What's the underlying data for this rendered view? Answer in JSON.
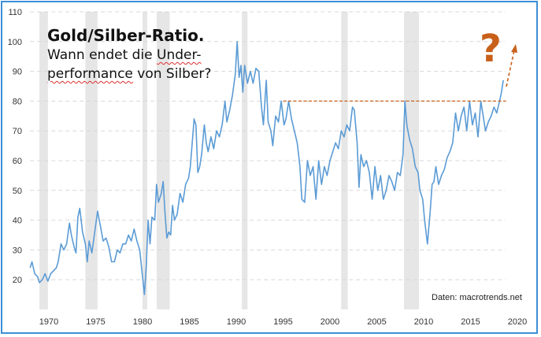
{
  "title": "Gold/Silber-Ratio.",
  "subtitle_line1_a": "Wann endet die ",
  "subtitle_line1_b": "Under-",
  "subtitle_line2_a": "performance",
  "subtitle_line2_b": " von Silber?",
  "source": "Daten: macrotrends.net",
  "question_mark": "?",
  "colors": {
    "line": "#5b9bd5",
    "annotation": "#c8601a",
    "recession": "#e6e6e6",
    "frame": "#3d8fd6"
  },
  "chart_data": {
    "type": "line",
    "title": "Gold/Silber-Ratio.",
    "xlabel": "",
    "ylabel": "",
    "xlim": [
      1968,
      2020.5
    ],
    "ylim": [
      10,
      110
    ],
    "x_ticks": [
      1970,
      1975,
      1980,
      1985,
      1990,
      1995,
      2000,
      2005,
      2010,
      2015,
      2020
    ],
    "y_ticks": [
      20,
      30,
      40,
      50,
      60,
      70,
      80,
      90,
      100,
      110
    ],
    "grid": true,
    "recessions": [
      [
        1969.0,
        1969.9
      ],
      [
        1973.9,
        1975.2
      ],
      [
        1980.0,
        1980.5
      ],
      [
        1981.5,
        1982.9
      ],
      [
        1990.6,
        1991.2
      ],
      [
        2001.2,
        2001.9
      ],
      [
        2007.9,
        2009.5
      ]
    ],
    "reference_line": {
      "value": 80,
      "from": 1995,
      "to": 2018.8
    },
    "series": [
      {
        "name": "Gold/Silber-Ratio",
        "x": [
          1968.0,
          1968.2,
          1968.5,
          1968.8,
          1969.0,
          1969.3,
          1969.6,
          1969.9,
          1970.2,
          1970.5,
          1970.8,
          1971.0,
          1971.3,
          1971.6,
          1971.9,
          1972.2,
          1972.4,
          1972.7,
          1972.9,
          1973.1,
          1973.3,
          1973.6,
          1973.9,
          1974.1,
          1974.3,
          1974.6,
          1974.9,
          1975.2,
          1975.5,
          1975.8,
          1976.1,
          1976.4,
          1976.7,
          1977.0,
          1977.3,
          1977.6,
          1977.9,
          1978.2,
          1978.5,
          1978.8,
          1979.1,
          1979.4,
          1979.7,
          1980.0,
          1980.2,
          1980.4,
          1980.6,
          1980.8,
          1981.0,
          1981.3,
          1981.5,
          1981.7,
          1982.0,
          1982.2,
          1982.4,
          1982.6,
          1982.8,
          1983.0,
          1983.2,
          1983.4,
          1983.7,
          1984.0,
          1984.3,
          1984.6,
          1984.9,
          1985.1,
          1985.3,
          1985.5,
          1985.7,
          1985.9,
          1986.1,
          1986.3,
          1986.6,
          1986.8,
          1987.0,
          1987.3,
          1987.6,
          1987.9,
          1988.2,
          1988.5,
          1988.8,
          1989.0,
          1989.3,
          1989.6,
          1989.9,
          1990.1,
          1990.3,
          1990.5,
          1990.7,
          1990.9,
          1991.2,
          1991.5,
          1991.8,
          1992.1,
          1992.4,
          1992.7,
          1992.9,
          1993.2,
          1993.4,
          1993.7,
          1993.9,
          1994.2,
          1994.5,
          1994.8,
          1995.1,
          1995.3,
          1995.6,
          1995.9,
          1996.2,
          1996.5,
          1996.8,
          1997.0,
          1997.3,
          1997.6,
          1997.9,
          1998.2,
          1998.5,
          1998.8,
          1999.1,
          1999.4,
          1999.7,
          2000.0,
          2000.3,
          2000.6,
          2000.9,
          2001.2,
          2001.5,
          2001.8,
          2002.1,
          2002.4,
          2002.6,
          2002.9,
          2003.1,
          2003.3,
          2003.6,
          2003.9,
          2004.2,
          2004.5,
          2004.8,
          2005.1,
          2005.4,
          2005.7,
          2006.0,
          2006.3,
          2006.6,
          2006.9,
          2007.2,
          2007.5,
          2007.8,
          2008.0,
          2008.2,
          2008.5,
          2008.8,
          2009.1,
          2009.4,
          2009.6,
          2009.9,
          2010.1,
          2010.4,
          2010.7,
          2010.9,
          2011.1,
          2011.3,
          2011.6,
          2011.9,
          2012.2,
          2012.5,
          2012.8,
          2013.1,
          2013.4,
          2013.7,
          2014.0,
          2014.3,
          2014.6,
          2014.9,
          2015.2,
          2015.5,
          2015.8,
          2016.1,
          2016.3,
          2016.6,
          2016.9,
          2017.2,
          2017.5,
          2017.8,
          2018.1,
          2018.3,
          2018.5
        ],
        "values": [
          24,
          26,
          22,
          21,
          19,
          20,
          22,
          19.5,
          22,
          23,
          24,
          26,
          32,
          30,
          32,
          39,
          35,
          31,
          29,
          41,
          44,
          36,
          32,
          26,
          33,
          29,
          36,
          43,
          38,
          33,
          34,
          31,
          26,
          26,
          30,
          29,
          32,
          32,
          35,
          33,
          37,
          33,
          30,
          21,
          15,
          25,
          40,
          32,
          41,
          40,
          52,
          46,
          49,
          53,
          42,
          34,
          36,
          35,
          45,
          40,
          42,
          49,
          46,
          52,
          54,
          58,
          66,
          74,
          72,
          56,
          58,
          62,
          72,
          66,
          63,
          68,
          64,
          70,
          68,
          72,
          80,
          73,
          77,
          82,
          89,
          100,
          88,
          92,
          83,
          92,
          86,
          90,
          86,
          91,
          90,
          78,
          72,
          87,
          73,
          70,
          65,
          75,
          73,
          80,
          72,
          74,
          80,
          74,
          70,
          66,
          58,
          47,
          46,
          60,
          55,
          58,
          47,
          60,
          52,
          58,
          55,
          60,
          63,
          66,
          64,
          70,
          68,
          72,
          70,
          78,
          77,
          66,
          51,
          62,
          58,
          60,
          56,
          47,
          58,
          50,
          55,
          47,
          50,
          55,
          53,
          50,
          56,
          55,
          62,
          80,
          72,
          67,
          64,
          58,
          56,
          50,
          47,
          40,
          32,
          43,
          52,
          53,
          58,
          52,
          55,
          57,
          61,
          63,
          66,
          76,
          70,
          75,
          78,
          70,
          80,
          72,
          76,
          68,
          80,
          76,
          70,
          73,
          75,
          78,
          76,
          80,
          83,
          87
        ]
      }
    ]
  }
}
